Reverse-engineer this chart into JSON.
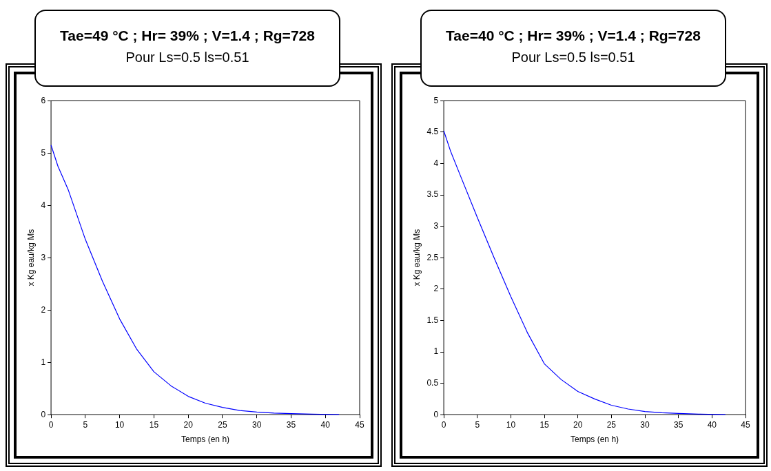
{
  "chart_data": [
    {
      "type": "line",
      "title": "Tae=49 °C ; Hr= 39% ; V=1.4 ; Rg=728",
      "subtitle": "Pour Ls=0.5 ls=0.51",
      "xlabel": "Temps (en h)",
      "ylabel": "x Kg eau/kg Ms",
      "x": [
        0,
        1,
        2.5,
        5,
        7.5,
        10,
        12.5,
        15,
        17.5,
        20,
        22.5,
        25,
        27.5,
        30,
        32.5,
        35,
        38,
        42
      ],
      "series": [
        {
          "color": "#0000ff",
          "values": [
            5.15,
            4.75,
            4.3,
            3.35,
            2.55,
            1.83,
            1.25,
            0.82,
            0.55,
            0.35,
            0.22,
            0.14,
            0.08,
            0.05,
            0.03,
            0.02,
            0.01,
            0
          ]
        }
      ],
      "xlim": [
        0,
        45
      ],
      "xticks": [
        0,
        5,
        10,
        15,
        20,
        25,
        30,
        35,
        40,
        45
      ],
      "ylim": [
        0,
        6
      ],
      "yticks": [
        0,
        1,
        2,
        3,
        4,
        5,
        6
      ],
      "grid": false,
      "legend": false,
      "marker": "none",
      "line_style": "solid"
    },
    {
      "type": "line",
      "title": "Tae=40 °C ; Hr= 39% ; V=1.4 ; Rg=728",
      "subtitle": "Pour Ls=0.5 ls=0.51",
      "xlabel": "Temps (en h)",
      "ylabel": "x Kg eau/kg Ms",
      "x": [
        0,
        1,
        2.5,
        5,
        7.5,
        10,
        12.5,
        15,
        17.5,
        20,
        22.5,
        25,
        27.5,
        30,
        32.5,
        35,
        38,
        42
      ],
      "series": [
        {
          "color": "#0000ff",
          "values": [
            4.52,
            4.2,
            3.8,
            3.14,
            2.5,
            1.88,
            1.3,
            0.81,
            0.56,
            0.37,
            0.25,
            0.15,
            0.09,
            0.05,
            0.03,
            0.02,
            0.01,
            0
          ]
        }
      ],
      "xlim": [
        0,
        45
      ],
      "xticks": [
        0,
        5,
        10,
        15,
        20,
        25,
        30,
        35,
        40,
        45
      ],
      "ylim": [
        0,
        5
      ],
      "yticks": [
        0,
        0.5,
        1,
        1.5,
        2,
        2.5,
        3,
        3.5,
        4,
        4.5,
        5
      ],
      "grid": false,
      "legend": false,
      "marker": "none",
      "line_style": "solid"
    }
  ]
}
